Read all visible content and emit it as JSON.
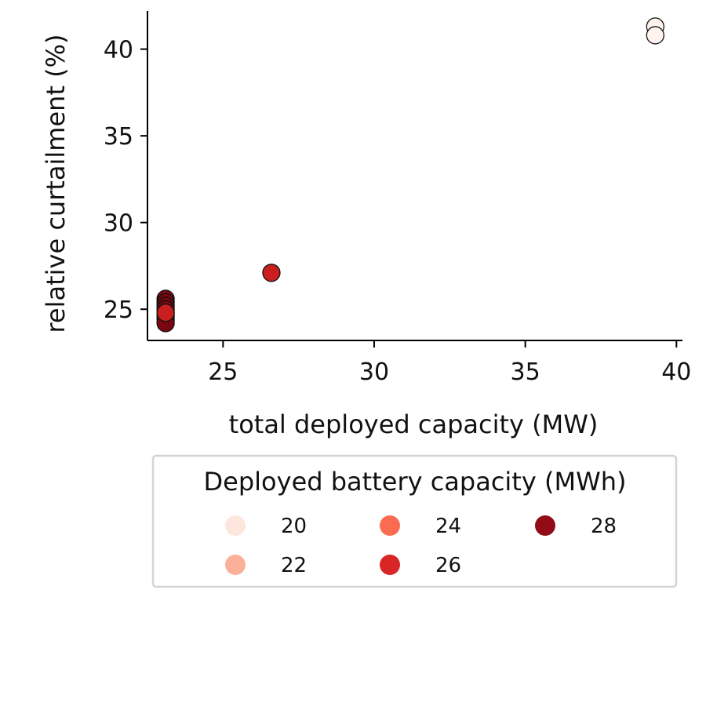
{
  "chart_data": {
    "type": "scatter",
    "title": "",
    "xlabel": "total deployed capacity (MW)",
    "ylabel": "relative curtailment (%)",
    "xlim": [
      22.5,
      40.2
    ],
    "ylim": [
      23.2,
      42.2
    ],
    "x_ticks": [
      25,
      30,
      35,
      40
    ],
    "y_ticks": [
      25,
      30,
      35,
      40
    ],
    "grid": false,
    "points": [
      {
        "x": 39.3,
        "y": 41.3,
        "battery": 20
      },
      {
        "x": 39.3,
        "y": 40.8,
        "battery": 20
      },
      {
        "x": 26.6,
        "y": 27.1,
        "battery": 26
      },
      {
        "x": 23.1,
        "y": 25.6,
        "battery": 28
      },
      {
        "x": 23.1,
        "y": 25.4,
        "battery": 28
      },
      {
        "x": 23.1,
        "y": 25.2,
        "battery": 28
      },
      {
        "x": 23.1,
        "y": 25.0,
        "battery": 28
      },
      {
        "x": 23.1,
        "y": 24.8,
        "battery": 28
      },
      {
        "x": 23.1,
        "y": 24.6,
        "battery": 28
      },
      {
        "x": 23.1,
        "y": 24.4,
        "battery": 28
      },
      {
        "x": 23.1,
        "y": 24.2,
        "battery": 28
      },
      {
        "x": 23.1,
        "y": 24.8,
        "battery": 26
      }
    ],
    "legend": {
      "title": "Deployed battery capacity (MWh)",
      "placement": "below",
      "entries": [
        {
          "label": "20",
          "value": 20,
          "color": "#fde6dd"
        },
        {
          "label": "22",
          "value": 22,
          "color": "#fbb09a"
        },
        {
          "label": "24",
          "value": 24,
          "color": "#f96c51"
        },
        {
          "label": "26",
          "value": 26,
          "color": "#d82626"
        },
        {
          "label": "28",
          "value": 28,
          "color": "#920c17"
        }
      ]
    },
    "color_scale": [
      {
        "value": 20,
        "color": "#fff3ee"
      },
      {
        "value": 26,
        "color": "#c9201f"
      },
      {
        "value": 28,
        "color": "#7a0612"
      }
    ]
  }
}
